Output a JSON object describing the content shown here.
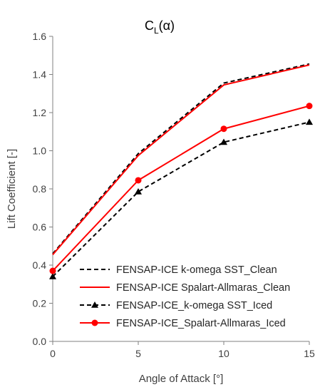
{
  "chart_data": {
    "type": "line",
    "title_main": "C",
    "title_sub": "L",
    "title_suffix": "(α)",
    "xlabel": "Angle of Attack [°]",
    "ylabel": "Lift Coefficient [-]",
    "x": [
      0,
      5,
      10,
      15
    ],
    "xlim": [
      0,
      15
    ],
    "ylim": [
      0,
      1.6
    ],
    "xticks": [
      0,
      5,
      10,
      15
    ],
    "xtick_labels": [
      "0",
      "5",
      "10",
      "15"
    ],
    "yticks": [
      0,
      0.2,
      0.4,
      0.6,
      0.8,
      1.0,
      1.2,
      1.4,
      1.6
    ],
    "ytick_labels": [
      "0.0",
      "0.2",
      "0.4",
      "0.6",
      "0.8",
      "1.0",
      "1.2",
      "1.4",
      "1.6"
    ],
    "grid": false,
    "legend_position": "bottom-right",
    "series": [
      {
        "name": "FENSAP-ICE k-omega SST_Clean",
        "values": [
          0.46,
          0.985,
          1.355,
          1.455
        ],
        "color": "#000000",
        "dash": true,
        "marker": "none"
      },
      {
        "name": "FENSAP-ICE Spalart-Allmaras_Clean",
        "values": [
          0.455,
          0.975,
          1.345,
          1.45
        ],
        "color": "#ff0000",
        "dash": false,
        "marker": "none"
      },
      {
        "name": "FENSAP-ICE_k-omega SST_Iced",
        "values": [
          0.34,
          0.785,
          1.045,
          1.15
        ],
        "color": "#000000",
        "dash": true,
        "marker": "triangle"
      },
      {
        "name": "FENSAP-ICE_Spalart-Allmaras_Iced",
        "values": [
          0.37,
          0.845,
          1.115,
          1.235
        ],
        "color": "#ff0000",
        "dash": false,
        "marker": "circle"
      }
    ]
  }
}
